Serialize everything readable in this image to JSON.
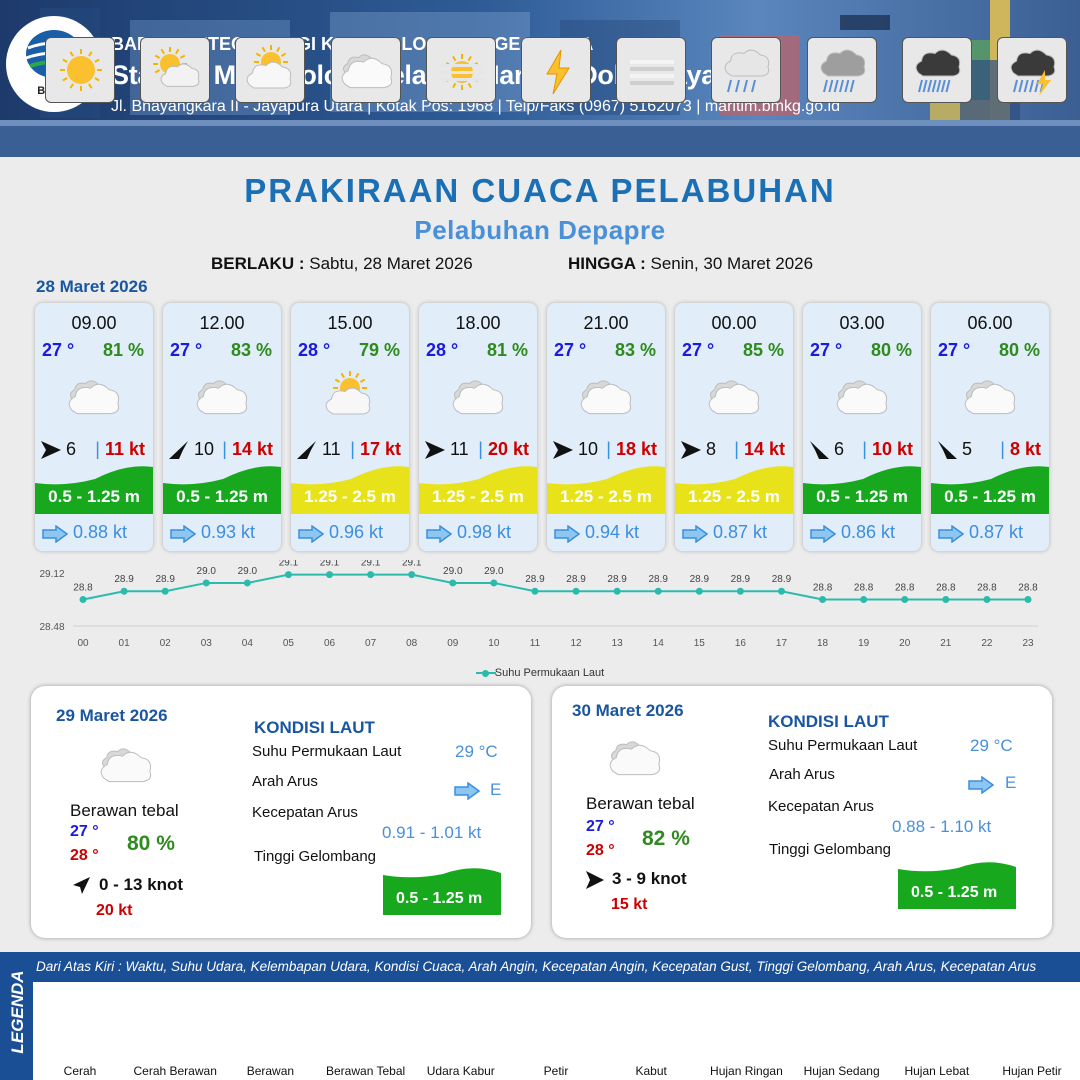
{
  "header": {
    "logo_text": "BMKG",
    "org": "BADAN METEOROLOGI KLIMATOLOGI DAN GEOFISIKA",
    "station": "Stasiun Meteorologi Kelas III Maritim Dok II Jayapura",
    "address": "Jl. Bhayangkara II - Jayapura Utara | Kotak Pos: 1968 | Telp/Faks (0967) 5162073 | maritim.bmkg.go.id"
  },
  "title": "PRAKIRAAN CUACA PELABUHAN",
  "subtitle": "Pelabuhan Depapre",
  "validity": {
    "from_label": "BERLAKU :",
    "from": "Sabtu, 28 Maret 2026",
    "to_label": "HINGGA :",
    "to": "Senin, 30 Maret 2026"
  },
  "day1_label": "28 Maret 2026",
  "colors": {
    "green_wave": "#17a81d",
    "yellow_wave": "#e8e21a",
    "temp_blue": "#1a1ae0",
    "gust_red": "#cc0000",
    "humidity_green": "#2f8a1f",
    "accent_blue": "#1a56a0"
  },
  "hourly": [
    {
      "time": "09.00",
      "temp": "27 °",
      "humidity": "81 %",
      "condition_icon": "berawan-tebal-icon",
      "wind_dir_icon": "arrow-east-icon",
      "wind_speed": "6",
      "gust": "11 kt",
      "wave": "0.5 - 1.25 m",
      "wave_color": "green",
      "current_icon": "arrow-east-outline-icon",
      "current_speed": "0.88 kt"
    },
    {
      "time": "12.00",
      "temp": "27 °",
      "humidity": "83 %",
      "condition_icon": "berawan-tebal-icon",
      "wind_dir_icon": "arrow-northeast-icon",
      "wind_speed": "10",
      "gust": "14 kt",
      "wave": "0.5 - 1.25 m",
      "wave_color": "green",
      "current_icon": "arrow-east-outline-icon",
      "current_speed": "0.93 kt"
    },
    {
      "time": "15.00",
      "temp": "28 °",
      "humidity": "79 %",
      "condition_icon": "berawan-icon",
      "wind_dir_icon": "arrow-northeast-icon",
      "wind_speed": "11",
      "gust": "17 kt",
      "wave": "1.25 - 2.5 m",
      "wave_color": "yellow",
      "current_icon": "arrow-east-outline-icon",
      "current_speed": "0.96 kt"
    },
    {
      "time": "18.00",
      "temp": "28 °",
      "humidity": "81 %",
      "condition_icon": "berawan-tebal-icon",
      "wind_dir_icon": "arrow-east-icon",
      "wind_speed": "11",
      "gust": "20 kt",
      "wave": "1.25 - 2.5 m",
      "wave_color": "yellow",
      "current_icon": "arrow-east-outline-icon",
      "current_speed": "0.98 kt"
    },
    {
      "time": "21.00",
      "temp": "27 °",
      "humidity": "83 %",
      "condition_icon": "berawan-tebal-icon",
      "wind_dir_icon": "arrow-east-icon",
      "wind_speed": "10",
      "gust": "18 kt",
      "wave": "1.25 - 2.5 m",
      "wave_color": "yellow",
      "current_icon": "arrow-east-outline-icon",
      "current_speed": "0.94 kt"
    },
    {
      "time": "00.00",
      "temp": "27 °",
      "humidity": "85 %",
      "condition_icon": "berawan-tebal-icon",
      "wind_dir_icon": "arrow-east-icon",
      "wind_speed": "8",
      "gust": "14 kt",
      "wave": "1.25 - 2.5 m",
      "wave_color": "yellow",
      "current_icon": "arrow-east-outline-icon",
      "current_speed": "0.87 kt"
    },
    {
      "time": "03.00",
      "temp": "27 °",
      "humidity": "80 %",
      "condition_icon": "berawan-tebal-icon",
      "wind_dir_icon": "arrow-northwest-icon",
      "wind_speed": "6",
      "gust": "10 kt",
      "wave": "0.5 - 1.25 m",
      "wave_color": "green",
      "current_icon": "arrow-east-outline-icon",
      "current_speed": "0.86 kt"
    },
    {
      "time": "06.00",
      "temp": "27 °",
      "humidity": "80 %",
      "condition_icon": "berawan-tebal-icon",
      "wind_dir_icon": "arrow-northwest-icon",
      "wind_speed": "5",
      "gust": "8 kt",
      "wave": "0.5 - 1.25 m",
      "wave_color": "green",
      "current_icon": "arrow-east-outline-icon",
      "current_speed": "0.87 kt"
    }
  ],
  "chart_data": {
    "type": "line",
    "x": [
      "00",
      "01",
      "02",
      "03",
      "04",
      "05",
      "06",
      "07",
      "08",
      "09",
      "10",
      "11",
      "12",
      "13",
      "14",
      "15",
      "16",
      "17",
      "18",
      "19",
      "20",
      "21",
      "22",
      "23"
    ],
    "series": [
      {
        "name": "Suhu Permukaan Laut",
        "values": [
          28.8,
          28.9,
          28.9,
          29.0,
          29.0,
          29.1,
          29.1,
          29.1,
          29.1,
          29.0,
          29.0,
          28.9,
          28.9,
          28.9,
          28.9,
          28.9,
          28.9,
          28.9,
          28.8,
          28.8,
          28.8,
          28.8,
          28.8,
          28.8
        ]
      }
    ],
    "data_labels": [
      "28.8",
      "28.9",
      "28.9",
      "29.0",
      "29.0",
      "29.1",
      "29.1",
      "29.1",
      "29.1",
      "29.0",
      "29.0",
      "28.9",
      "28.9",
      "28.9",
      "28.9",
      "28.9",
      "28.9",
      "28.9",
      "28.8",
      "28.8",
      "28.8",
      "28.8",
      "28.8",
      "28.8"
    ],
    "y_ticks": [
      "29.12",
      "28.48"
    ],
    "ylim": [
      28.48,
      29.12
    ],
    "color": "#2bbbad",
    "legend_position": "bottom",
    "grid": true
  },
  "daily": [
    {
      "date": "29 Maret 2026",
      "kondisi_title": "KONDISI LAUT",
      "condition": "Berawan tebal",
      "condition_icon": "berawan-tebal-icon",
      "tmin": "27 °",
      "tmax": "28 °",
      "humidity": "80 %",
      "wind_dir_icon": "arrow-northeast-icon",
      "wind": "0  - 13 knot",
      "gust": "20 kt",
      "sst_label": "Suhu Permukaan Laut",
      "sst": "29 °C",
      "arah_label": "Arah Arus",
      "arah": "E",
      "kec_label": "Kecepatan Arus",
      "kec": "0.91 -  1.01 kt",
      "tinggi_label": "Tinggi Gelombang",
      "wave": "0.5 - 1.25 m"
    },
    {
      "date": "30 Maret 2026",
      "kondisi_title": "KONDISI LAUT",
      "condition": "Berawan tebal",
      "condition_icon": "berawan-tebal-icon",
      "tmin": "27 °",
      "tmax": "28 °",
      "humidity": "82 %",
      "wind_dir_icon": "arrow-east-icon",
      "wind": "3  - 9 knot",
      "gust": "15 kt",
      "sst_label": "Suhu Permukaan Laut",
      "sst": "29 °C",
      "arah_label": "Arah Arus",
      "arah": "E",
      "kec_label": "Kecepatan Arus",
      "kec": "0.88  -  1.10 kt",
      "tinggi_label": "Tinggi Gelombang",
      "wave": "0.5 - 1.25 m"
    }
  ],
  "legend": {
    "title": "LEGENDA",
    "description": "Dari Atas Kiri : Waktu, Suhu Udara, Kelembapan Udara, Kondisi Cuaca, Arah Angin, Kecepatan Angin, Kecepatan Gust, Tinggi Gelombang, Arah Arus, Kecepatan Arus",
    "items": [
      {
        "label": "Cerah",
        "icon": "cerah-icon"
      },
      {
        "label": "Cerah Berawan",
        "icon": "cerah-berawan-icon"
      },
      {
        "label": "Berawan",
        "icon": "berawan-icon"
      },
      {
        "label": "Berawan Tebal",
        "icon": "berawan-tebal-icon"
      },
      {
        "label": "Udara Kabur",
        "icon": "udara-kabur-icon"
      },
      {
        "label": "Petir",
        "icon": "petir-icon"
      },
      {
        "label": "Kabut",
        "icon": "kabut-icon"
      },
      {
        "label": "Hujan Ringan",
        "icon": "hujan-ringan-icon"
      },
      {
        "label": "Hujan Sedang",
        "icon": "hujan-sedang-icon"
      },
      {
        "label": "Hujan Lebat",
        "icon": "hujan-lebat-icon"
      },
      {
        "label": "Hujan Petir",
        "icon": "hujan-petir-icon"
      }
    ]
  }
}
